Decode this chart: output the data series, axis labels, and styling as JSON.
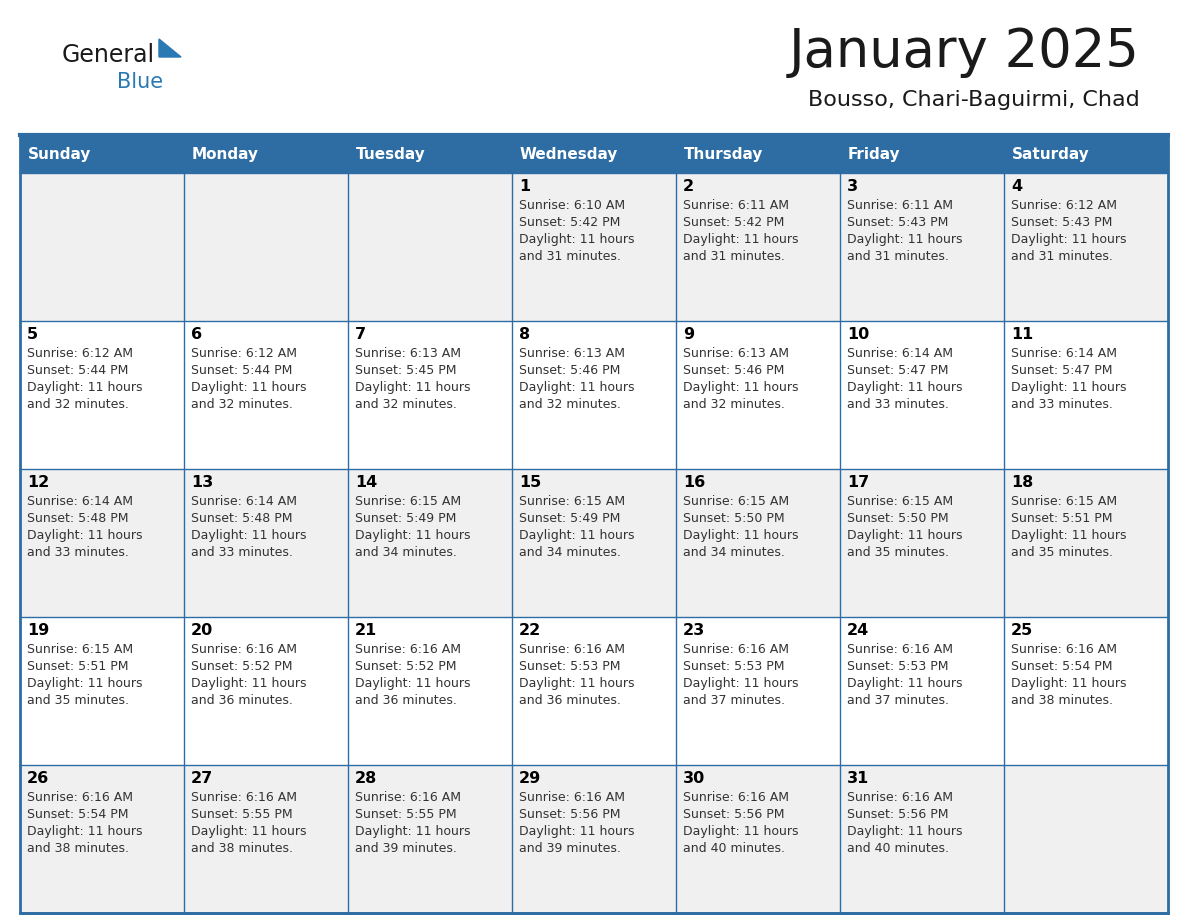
{
  "title": "January 2025",
  "subtitle": "Bousso, Chari-Baguirmi, Chad",
  "days_of_week": [
    "Sunday",
    "Monday",
    "Tuesday",
    "Wednesday",
    "Thursday",
    "Friday",
    "Saturday"
  ],
  "header_bg": "#2E6DA4",
  "header_text_color": "#FFFFFF",
  "row_bg": [
    "#F0F0F0",
    "#FFFFFF",
    "#F0F0F0",
    "#FFFFFF",
    "#F0F0F0"
  ],
  "cell_text_color": "#333333",
  "day_num_color": "#000000",
  "border_color": "#2E6DA4",
  "title_color": "#1a1a1a",
  "subtitle_color": "#1a1a1a",
  "logo_general_color": "#1a1a1a",
  "logo_blue_color": "#2979B5",
  "logo_triangle_color": "#2979B5",
  "calendar": [
    [
      null,
      null,
      null,
      {
        "day": 1,
        "sunrise": "6:10 AM",
        "sunset": "5:42 PM",
        "daylight_hours": 11,
        "daylight_minutes": 31
      },
      {
        "day": 2,
        "sunrise": "6:11 AM",
        "sunset": "5:42 PM",
        "daylight_hours": 11,
        "daylight_minutes": 31
      },
      {
        "day": 3,
        "sunrise": "6:11 AM",
        "sunset": "5:43 PM",
        "daylight_hours": 11,
        "daylight_minutes": 31
      },
      {
        "day": 4,
        "sunrise": "6:12 AM",
        "sunset": "5:43 PM",
        "daylight_hours": 11,
        "daylight_minutes": 31
      }
    ],
    [
      {
        "day": 5,
        "sunrise": "6:12 AM",
        "sunset": "5:44 PM",
        "daylight_hours": 11,
        "daylight_minutes": 32
      },
      {
        "day": 6,
        "sunrise": "6:12 AM",
        "sunset": "5:44 PM",
        "daylight_hours": 11,
        "daylight_minutes": 32
      },
      {
        "day": 7,
        "sunrise": "6:13 AM",
        "sunset": "5:45 PM",
        "daylight_hours": 11,
        "daylight_minutes": 32
      },
      {
        "day": 8,
        "sunrise": "6:13 AM",
        "sunset": "5:46 PM",
        "daylight_hours": 11,
        "daylight_minutes": 32
      },
      {
        "day": 9,
        "sunrise": "6:13 AM",
        "sunset": "5:46 PM",
        "daylight_hours": 11,
        "daylight_minutes": 32
      },
      {
        "day": 10,
        "sunrise": "6:14 AM",
        "sunset": "5:47 PM",
        "daylight_hours": 11,
        "daylight_minutes": 33
      },
      {
        "day": 11,
        "sunrise": "6:14 AM",
        "sunset": "5:47 PM",
        "daylight_hours": 11,
        "daylight_minutes": 33
      }
    ],
    [
      {
        "day": 12,
        "sunrise": "6:14 AM",
        "sunset": "5:48 PM",
        "daylight_hours": 11,
        "daylight_minutes": 33
      },
      {
        "day": 13,
        "sunrise": "6:14 AM",
        "sunset": "5:48 PM",
        "daylight_hours": 11,
        "daylight_minutes": 33
      },
      {
        "day": 14,
        "sunrise": "6:15 AM",
        "sunset": "5:49 PM",
        "daylight_hours": 11,
        "daylight_minutes": 34
      },
      {
        "day": 15,
        "sunrise": "6:15 AM",
        "sunset": "5:49 PM",
        "daylight_hours": 11,
        "daylight_minutes": 34
      },
      {
        "day": 16,
        "sunrise": "6:15 AM",
        "sunset": "5:50 PM",
        "daylight_hours": 11,
        "daylight_minutes": 34
      },
      {
        "day": 17,
        "sunrise": "6:15 AM",
        "sunset": "5:50 PM",
        "daylight_hours": 11,
        "daylight_minutes": 35
      },
      {
        "day": 18,
        "sunrise": "6:15 AM",
        "sunset": "5:51 PM",
        "daylight_hours": 11,
        "daylight_minutes": 35
      }
    ],
    [
      {
        "day": 19,
        "sunrise": "6:15 AM",
        "sunset": "5:51 PM",
        "daylight_hours": 11,
        "daylight_minutes": 35
      },
      {
        "day": 20,
        "sunrise": "6:16 AM",
        "sunset": "5:52 PM",
        "daylight_hours": 11,
        "daylight_minutes": 36
      },
      {
        "day": 21,
        "sunrise": "6:16 AM",
        "sunset": "5:52 PM",
        "daylight_hours": 11,
        "daylight_minutes": 36
      },
      {
        "day": 22,
        "sunrise": "6:16 AM",
        "sunset": "5:53 PM",
        "daylight_hours": 11,
        "daylight_minutes": 36
      },
      {
        "day": 23,
        "sunrise": "6:16 AM",
        "sunset": "5:53 PM",
        "daylight_hours": 11,
        "daylight_minutes": 37
      },
      {
        "day": 24,
        "sunrise": "6:16 AM",
        "sunset": "5:53 PM",
        "daylight_hours": 11,
        "daylight_minutes": 37
      },
      {
        "day": 25,
        "sunrise": "6:16 AM",
        "sunset": "5:54 PM",
        "daylight_hours": 11,
        "daylight_minutes": 38
      }
    ],
    [
      {
        "day": 26,
        "sunrise": "6:16 AM",
        "sunset": "5:54 PM",
        "daylight_hours": 11,
        "daylight_minutes": 38
      },
      {
        "day": 27,
        "sunrise": "6:16 AM",
        "sunset": "5:55 PM",
        "daylight_hours": 11,
        "daylight_minutes": 38
      },
      {
        "day": 28,
        "sunrise": "6:16 AM",
        "sunset": "5:55 PM",
        "daylight_hours": 11,
        "daylight_minutes": 39
      },
      {
        "day": 29,
        "sunrise": "6:16 AM",
        "sunset": "5:56 PM",
        "daylight_hours": 11,
        "daylight_minutes": 39
      },
      {
        "day": 30,
        "sunrise": "6:16 AM",
        "sunset": "5:56 PM",
        "daylight_hours": 11,
        "daylight_minutes": 40
      },
      {
        "day": 31,
        "sunrise": "6:16 AM",
        "sunset": "5:56 PM",
        "daylight_hours": 11,
        "daylight_minutes": 40
      },
      null
    ]
  ]
}
